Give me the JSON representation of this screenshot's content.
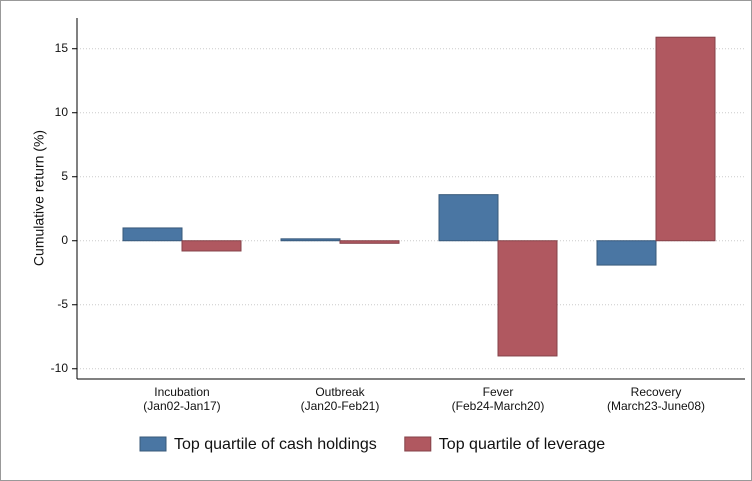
{
  "chart_data": {
    "type": "bar",
    "ylabel": "Cumulative return (%)",
    "categories": [
      [
        "Incubation",
        "(Jan02-Jan17)"
      ],
      [
        "Outbreak",
        "(Jan20-Feb21)"
      ],
      [
        "Fever",
        "(Feb24-March20)"
      ],
      [
        "Recovery",
        "(March23-June08)"
      ]
    ],
    "series": [
      {
        "name": "Top quartile of cash holdings",
        "color": "#4a76a3",
        "values": [
          1.0,
          0.15,
          3.6,
          -1.9
        ]
      },
      {
        "name": "Top quartile of leverage",
        "color": "#b05860",
        "values": [
          -0.8,
          -0.2,
          -9.0,
          15.9
        ]
      }
    ],
    "ylim": [
      -10.8,
      17.4
    ],
    "yticks": [
      -10,
      -5,
      0,
      5,
      10,
      15
    ],
    "grid": true
  }
}
